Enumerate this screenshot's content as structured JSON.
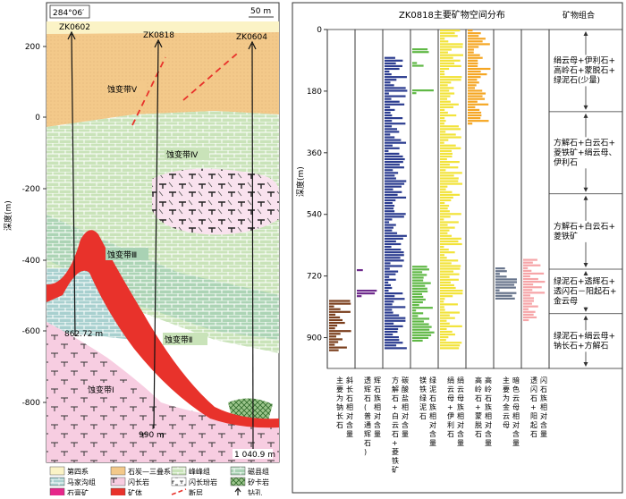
{
  "left_panel": {
    "azimuth": "284°06′",
    "scale_label": "50 m",
    "depth_axis_label": "深度(m)",
    "y_ticks": [
      "200",
      "0",
      "-200",
      "-400",
      "-600",
      "-800"
    ],
    "boreholes": [
      {
        "name": "ZK0602",
        "end_label": "862.72 m"
      },
      {
        "name": "ZK0818",
        "end_label": "990 m"
      },
      {
        "name": "ZK0604",
        "end_label": "1 040.9 m"
      }
    ],
    "zones": [
      "蚀变带Ⅴ",
      "蚀变带Ⅳ",
      "蚀变带Ⅲ",
      "蚀变带Ⅱ",
      "蚀变带Ⅰ"
    ],
    "legend": [
      {
        "label": "第四系",
        "color": "#fbf3c6",
        "pattern": "plain"
      },
      {
        "label": "石炭—三叠系",
        "color": "#f3c98a",
        "pattern": "plain"
      },
      {
        "label": "峰峰组",
        "color": "#c9e3b9",
        "pattern": "brick"
      },
      {
        "label": "磁县组",
        "color": "#a9d2b4",
        "pattern": "brick"
      },
      {
        "label": "马家沟组",
        "color": "#a8d0cf",
        "pattern": "brick"
      },
      {
        "label": "闪长岩",
        "color": "#f7cde1",
        "pattern": "pink"
      },
      {
        "label": "闪长玢岩",
        "color": "#ffffff",
        "pattern": "porph"
      },
      {
        "label": "矽卡岩",
        "color": "#9cc58c",
        "pattern": "skarn"
      },
      {
        "label": "石膏矿",
        "color": "#e6268a",
        "pattern": "plain"
      },
      {
        "label": "矿体",
        "color": "#e8322b",
        "pattern": "plain"
      },
      {
        "label": "断层",
        "color": "#e8322b",
        "pattern": "fault"
      },
      {
        "label": "钻孔",
        "color": "#222222",
        "pattern": "drill"
      }
    ]
  },
  "right_panel": {
    "title": "ZK0818主要矿物空间分布",
    "assemblage_header": "矿物组合",
    "depth_axis_label": "深度(m)",
    "depth_ticks": [
      "0",
      "180",
      "360",
      "540",
      "720",
      "900"
    ],
    "columns": [
      {
        "label": "主要为钠长石",
        "sub": "斜长石相对含量",
        "color": "#7a3e1c"
      },
      {
        "label": "透辉石(普通辉石)",
        "sub": "辉石族相对含量",
        "color": "#6e2a8c"
      },
      {
        "label": "方解石+白云石+菱铁矿",
        "sub": "碳酸盐相对含量",
        "color": "#2b3c8f"
      },
      {
        "label": "镁铁绿泥石",
        "sub": "绿泥石族相对含量",
        "color": "#5fb845"
      },
      {
        "label": "绢云母+伊利石",
        "sub": "绢云母族相对含量",
        "color": "#f2e33a"
      },
      {
        "label": "高岭石+蒙脱石",
        "sub": "高岭石族相对含量",
        "color": "#f5a623"
      },
      {
        "label": "主要为金云母",
        "sub": "暗色云母相对含量",
        "color": "#66738a"
      },
      {
        "label": "透闪石+阳起石",
        "sub": "闪石族相对含量",
        "color": "#f6a5a8"
      }
    ],
    "assemblages": [
      "绢云母+伊利石+高岭石+蒙脱石+绿泥石(少量)",
      "方解石+白云石+菱铁矿+绢云母、伊利石",
      "方解石+白云石+菱铁矿",
      "绿泥石+透辉石+透闪石－阳起石+金云母",
      "绿泥石+绢云母+钠长石+方解石"
    ]
  },
  "chart_data": {
    "type": "bar",
    "title": "ZK0818主要矿物空间分布",
    "ylabel": "深度(m)",
    "ylim": [
      0,
      990
    ],
    "depth_ticks": [
      0,
      180,
      360,
      540,
      720,
      900
    ],
    "series": [
      {
        "name": "斜长石相对含量",
        "intervals": [
          [
            790,
            935
          ]
        ]
      },
      {
        "name": "辉石族相对含量",
        "intervals": [
          [
            700,
            705
          ],
          [
            760,
            780
          ]
        ]
      },
      {
        "name": "碳酸盐相对含量",
        "intervals": [
          [
            80,
            935
          ]
        ]
      },
      {
        "name": "绿泥石族相对含量",
        "intervals": [
          [
            55,
            70
          ],
          [
            95,
            105
          ],
          [
            175,
            185
          ],
          [
            690,
            910
          ]
        ]
      },
      {
        "name": "绢云母族相对含量",
        "intervals": [
          [
            0,
            930
          ]
        ]
      },
      {
        "name": "高岭石族相对含量",
        "intervals": [
          [
            0,
            280
          ]
        ]
      },
      {
        "name": "暗色云母相对含量",
        "intervals": [
          [
            695,
            790
          ]
        ]
      },
      {
        "name": "闪石族相对含量",
        "intervals": [
          [
            670,
            850
          ]
        ]
      }
    ],
    "assemblage_boundaries": [
      0,
      240,
      480,
      700,
      830,
      990
    ]
  }
}
